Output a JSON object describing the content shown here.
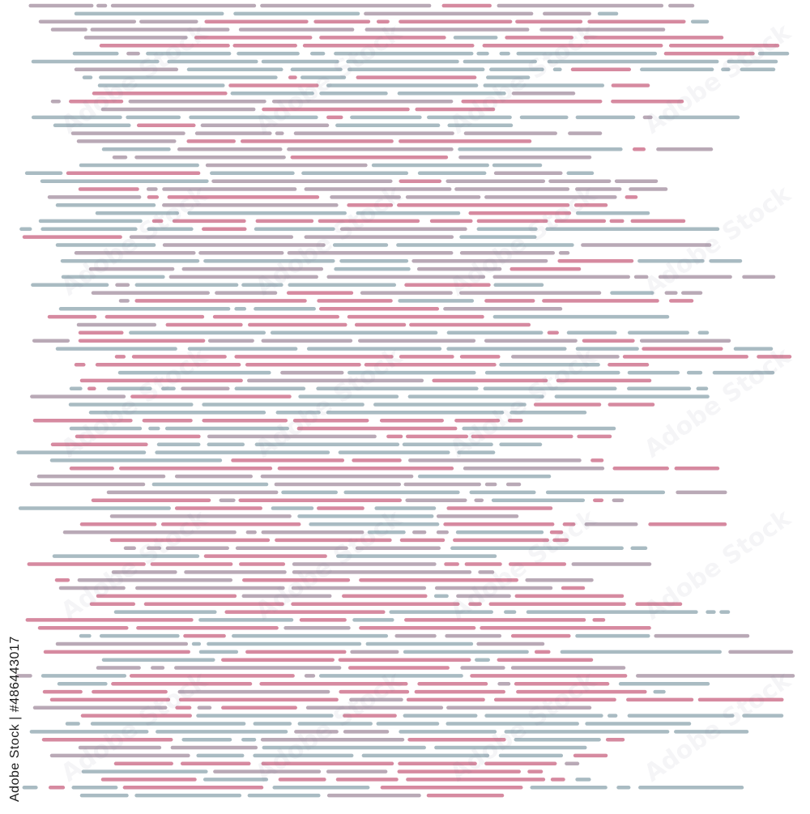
{
  "image": {
    "subject": "abstract horizontal dashed stripes pattern",
    "background": "#ffffff",
    "palette": {
      "pink": "#d68aa0",
      "slate": "#a9bbc2",
      "mauve": "#b9a9b6"
    },
    "stock_id_text": "Adobe Stock | #486443017",
    "watermark_text": "Adobe Stock"
  }
}
